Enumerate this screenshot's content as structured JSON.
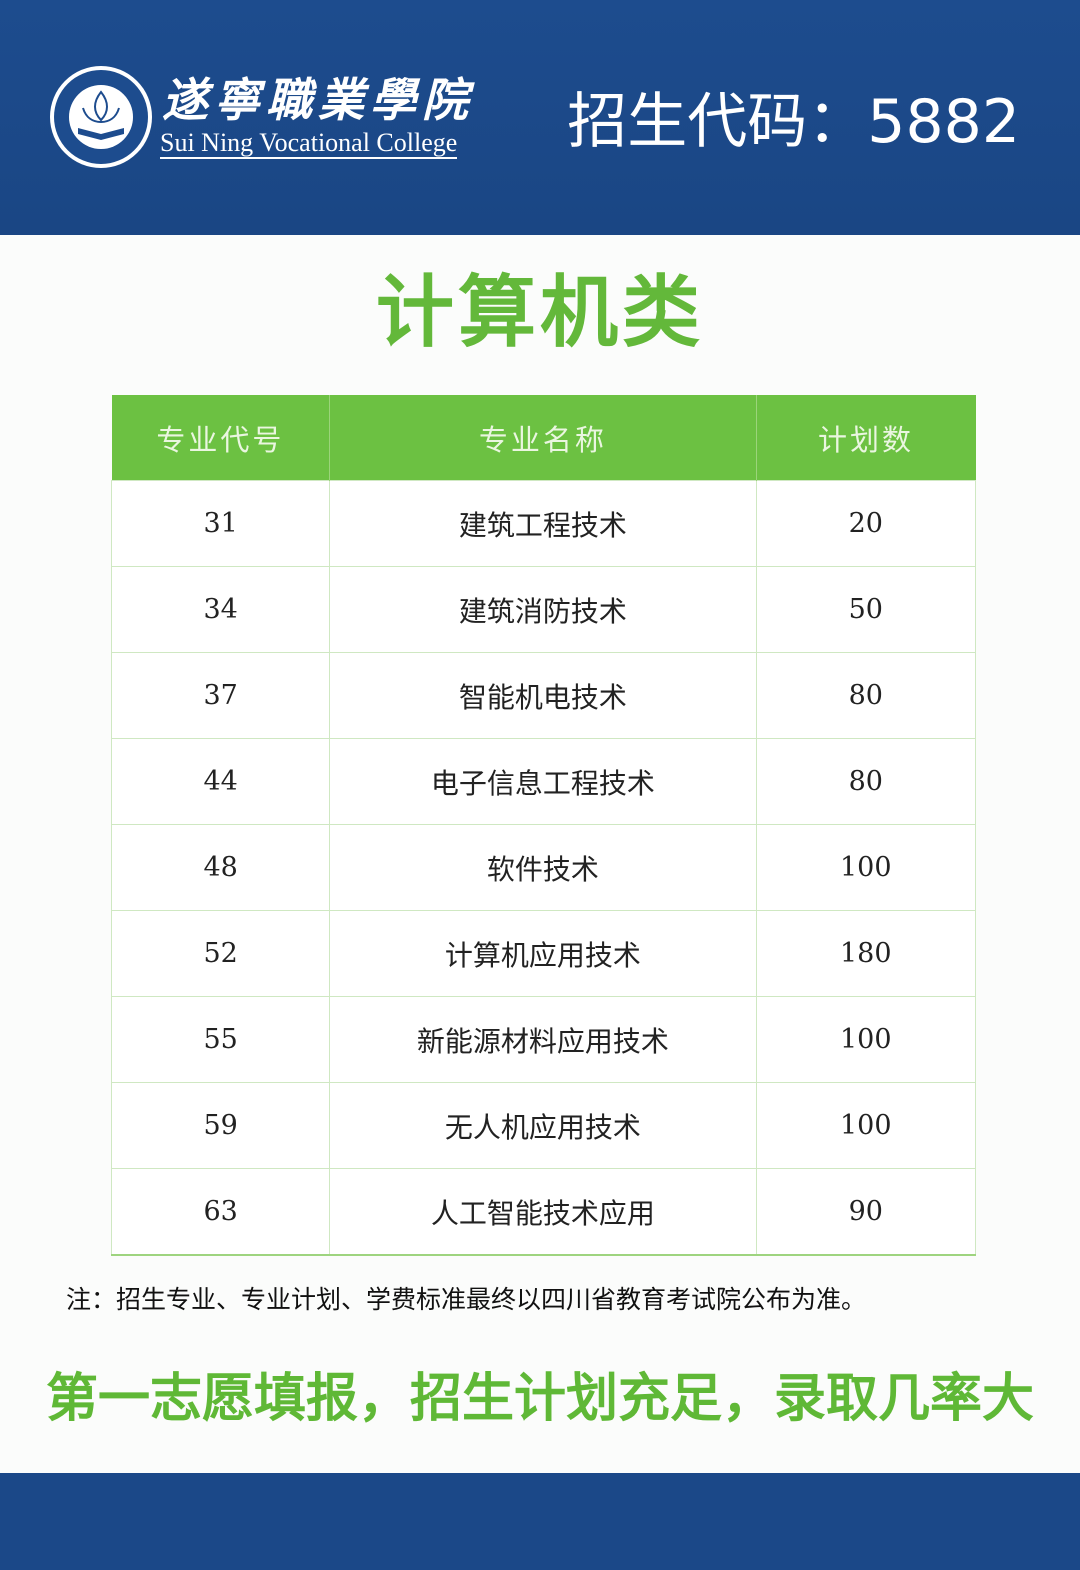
{
  "header": {
    "logo": {
      "seal_text": "遂宁職業學院",
      "name_cn": "遂寧職業學院",
      "name_en": "Sui Ning Vocational College"
    },
    "enrollment_code": "招生代码：5882"
  },
  "title": "计算机类",
  "table": {
    "columns": [
      "专业代号",
      "专业名称",
      "计划数"
    ],
    "rows": [
      {
        "code": "31",
        "name": "建筑工程技术",
        "plan": "20"
      },
      {
        "code": "34",
        "name": "建筑消防技术",
        "plan": "50"
      },
      {
        "code": "37",
        "name": "智能机电技术",
        "plan": "80"
      },
      {
        "code": "44",
        "name": "电子信息工程技术",
        "plan": "80"
      },
      {
        "code": "48",
        "name": "软件技术",
        "plan": "100"
      },
      {
        "code": "52",
        "name": "计算机应用技术",
        "plan": "180"
      },
      {
        "code": "55",
        "name": "新能源材料应用技术",
        "plan": "100"
      },
      {
        "code": "59",
        "name": "无人机应用技术",
        "plan": "100"
      },
      {
        "code": "63",
        "name": "人工智能技术应用",
        "plan": "90"
      }
    ]
  },
  "note": "注：招生专业、专业计划、学费标准最终以四川省教育考试院公布为准。",
  "slogan": "第一志愿填报，招生计划充足，录取几率大",
  "colors": {
    "header_blue": "#1b4888",
    "accent_green": "#6cc142"
  }
}
